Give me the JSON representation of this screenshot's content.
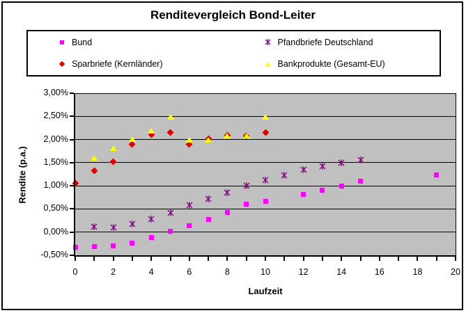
{
  "chart_data": {
    "type": "scatter",
    "title": "Renditevergleich Bond-Leiter",
    "xlabel": "Laufzeit",
    "ylabel": "Rendite (p.a.)",
    "xlim": [
      0,
      20
    ],
    "ylim": [
      -0.5,
      3.0
    ],
    "x_major_tick_step": 2,
    "x_minor_tick_step": 1,
    "y_tick_step": 0.5,
    "x_tick_labels": [
      "0",
      "2",
      "4",
      "6",
      "8",
      "10",
      "12",
      "14",
      "16",
      "18",
      "20"
    ],
    "y_tick_labels": [
      "3,00%",
      "2,50%",
      "2,00%",
      "1,50%",
      "1,00%",
      "0,50%",
      "0,00%",
      "-0,50%"
    ],
    "grid": "horizontal-lines-on",
    "plot_background": "#c0c0c0",
    "legend_position": "top",
    "series": [
      {
        "name": "Bund",
        "marker": "square",
        "color": "#ff00ff",
        "points": [
          [
            0,
            -0.33
          ],
          [
            1,
            -0.31
          ],
          [
            2,
            -0.29
          ],
          [
            3,
            -0.24
          ],
          [
            4,
            -0.11
          ],
          [
            5,
            0.02
          ],
          [
            6,
            0.14
          ],
          [
            7,
            0.28
          ],
          [
            8,
            0.43
          ],
          [
            9,
            0.6
          ],
          [
            10,
            0.66
          ],
          [
            12,
            0.81
          ],
          [
            13,
            0.9
          ],
          [
            14,
            0.99
          ],
          [
            15,
            1.1
          ],
          [
            19,
            1.23
          ]
        ]
      },
      {
        "name": "Pfandbriefe Deutschland",
        "marker": "star",
        "color": "#800080",
        "points": [
          [
            1,
            0.16
          ],
          [
            2,
            0.15
          ],
          [
            3,
            0.22
          ],
          [
            4,
            0.33
          ],
          [
            5,
            0.46
          ],
          [
            6,
            0.63
          ],
          [
            7,
            0.76
          ],
          [
            8,
            0.9
          ],
          [
            9,
            1.04
          ],
          [
            10,
            1.17
          ],
          [
            11,
            1.27
          ],
          [
            12,
            1.39
          ],
          [
            13,
            1.47
          ],
          [
            14,
            1.54
          ],
          [
            15,
            1.6
          ]
        ]
      },
      {
        "name": "Sparbriefe (Kernländer)",
        "marker": "diamond",
        "color": "#e00000",
        "points": [
          [
            0,
            1.05
          ],
          [
            1,
            1.33
          ],
          [
            2,
            1.52
          ],
          [
            3,
            1.9
          ],
          [
            4,
            2.1
          ],
          [
            5,
            2.15
          ],
          [
            6,
            1.9
          ],
          [
            7,
            2.02
          ],
          [
            8,
            2.09
          ],
          [
            9,
            2.07
          ],
          [
            10,
            2.15
          ]
        ]
      },
      {
        "name": "Bankprodukte (Gesamt-EU)",
        "marker": "triangle",
        "color": "#ffff00",
        "points": [
          [
            1,
            1.6
          ],
          [
            2,
            1.8
          ],
          [
            3,
            2.0
          ],
          [
            4,
            2.18
          ],
          [
            5,
            2.48
          ],
          [
            6,
            1.98
          ],
          [
            7,
            1.98
          ],
          [
            8,
            2.08
          ],
          [
            9,
            2.07
          ],
          [
            10,
            2.48
          ]
        ]
      }
    ]
  }
}
